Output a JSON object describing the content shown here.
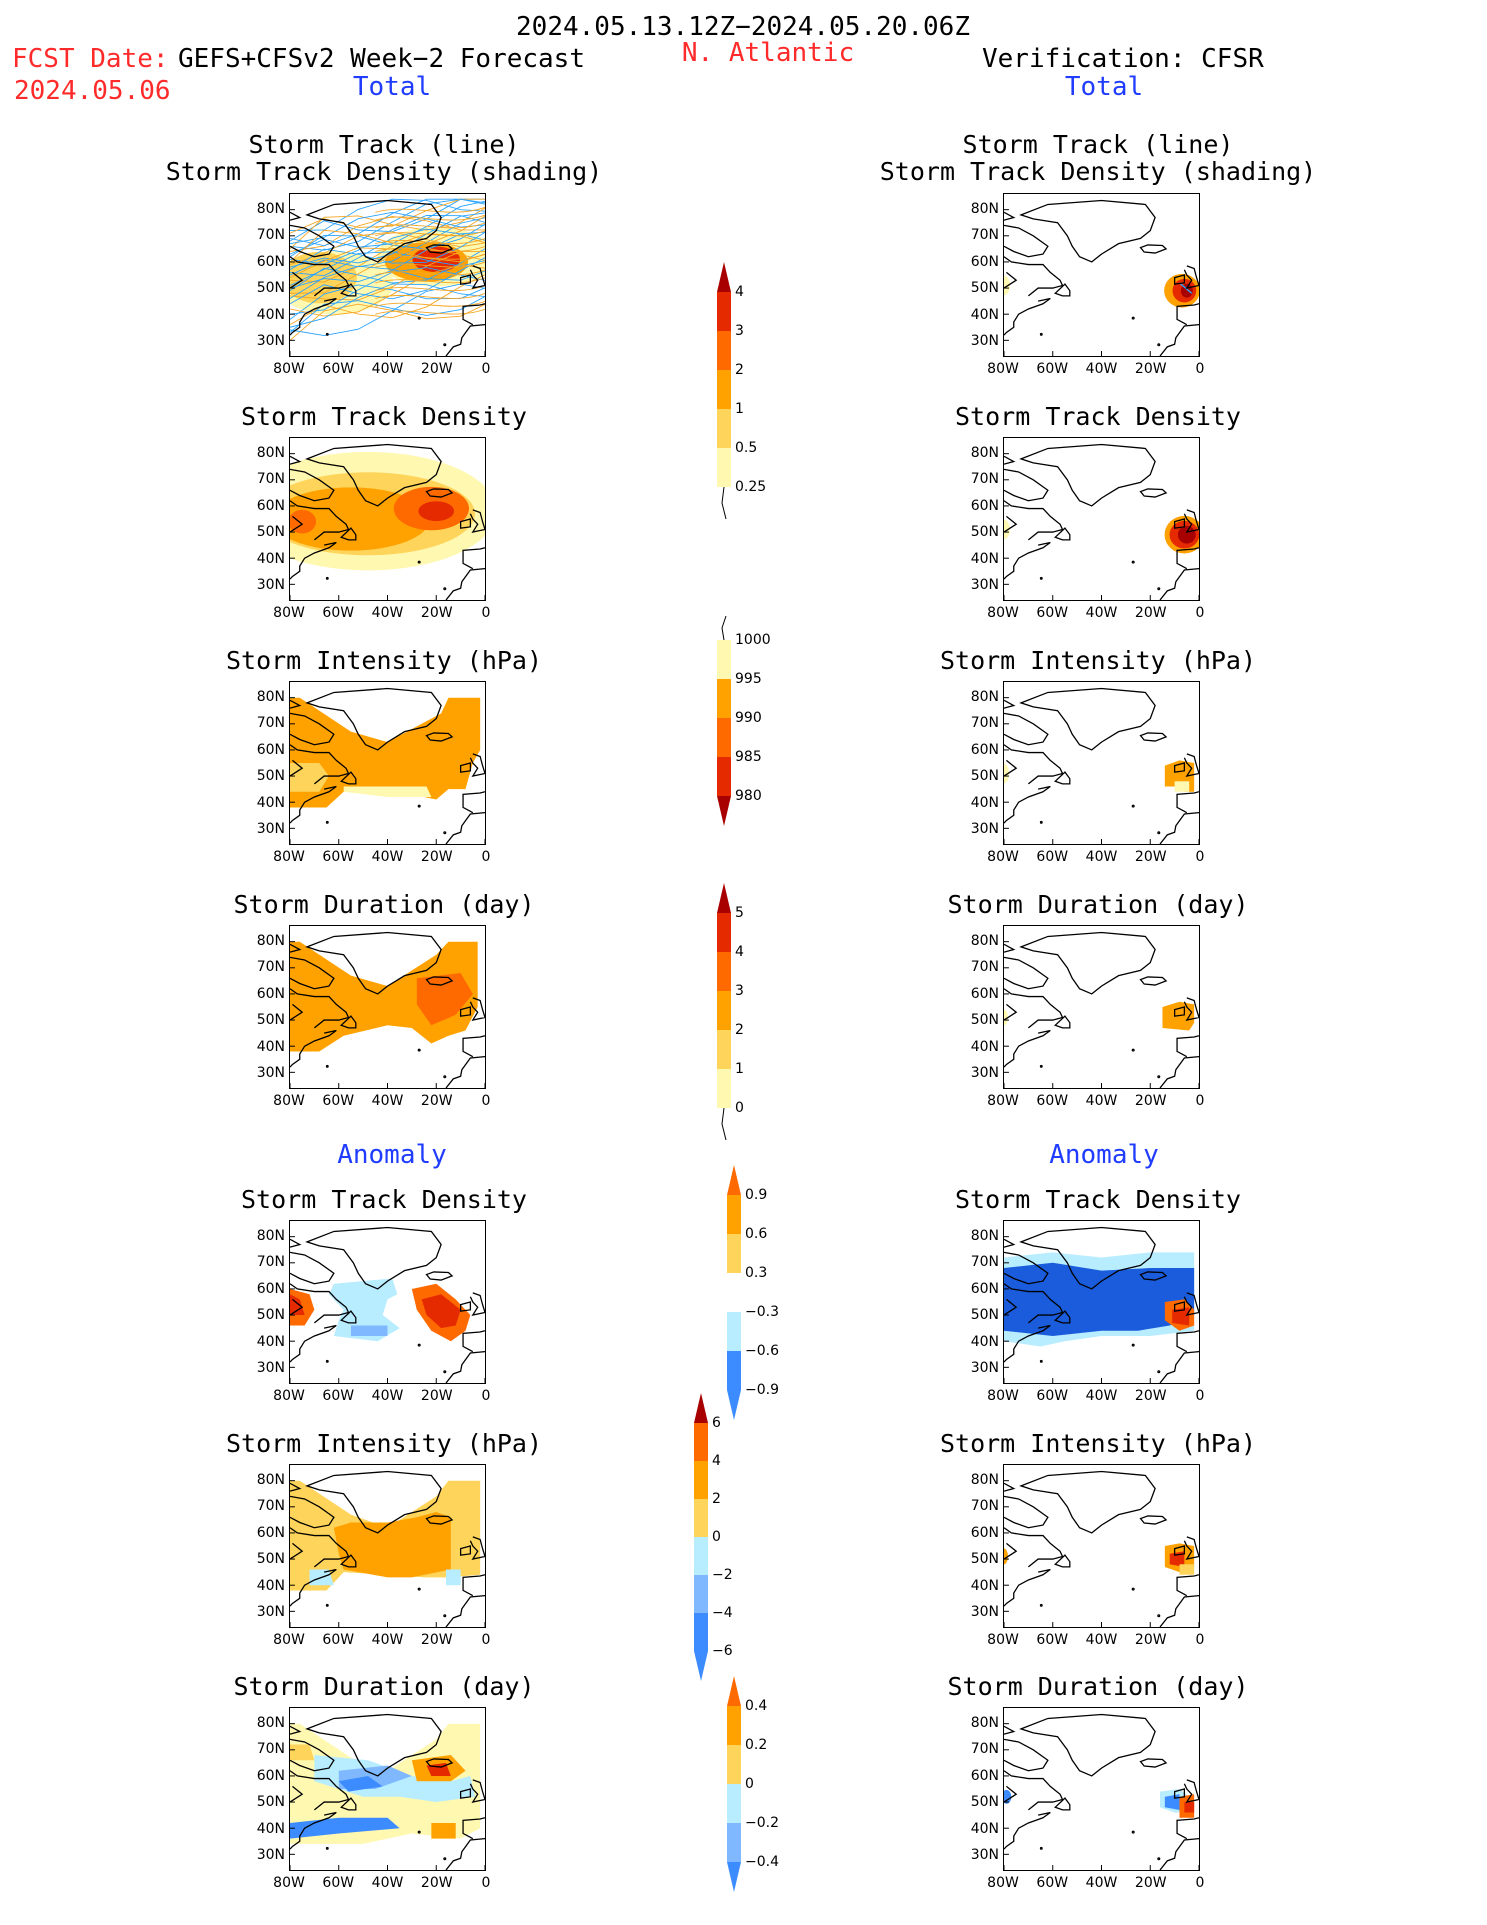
{
  "header": {
    "period": "2024.05.13.12Z−2024.05.20.06Z",
    "fcst_label": "FCST Date:",
    "fcst_model": "GEFS+CFSv2 Week−2 Forecast",
    "fcst_date": "2024.05.06",
    "region": "N. Atlantic",
    "verification": "Verification: CFSR",
    "total_left": "Total",
    "total_right": "Total",
    "anomaly_left": "Anomaly",
    "anomaly_right": "Anomaly"
  },
  "panel_titles": {
    "track_line": "Storm Track (line)",
    "track_density_shading": "Storm Track Density (shading)",
    "track_density": "Storm Track Density",
    "intensity": "Storm Intensity (hPa)",
    "duration": "Storm Duration (day)"
  },
  "axes": {
    "lat_ticks": [
      "80N",
      "70N",
      "60N",
      "50N",
      "40N",
      "30N"
    ],
    "lon_ticks": [
      "80W",
      "60W",
      "40W",
      "20W",
      "0"
    ]
  },
  "colors": {
    "yellow_light": "#fff8b0",
    "yellow": "#ffd45a",
    "orange": "#ffa200",
    "orange_dark": "#ff6a00",
    "red": "#e62a00",
    "dark_red": "#a80000",
    "cyan_light": "#b8ecff",
    "blue_light": "#7fb8ff",
    "blue": "#3c8cff",
    "blue_dark": "#1a5cdc",
    "track_blue": "#29a3ff",
    "track_orange": "#f5a623"
  },
  "chart_data": [
    {
      "type": "heatmap",
      "id": "fcst-track",
      "title": "Storm Track (line)",
      "subtitle": "Storm Track Density (shading)",
      "source": "GEFS+CFSv2"
    },
    {
      "type": "heatmap",
      "id": "obs-track",
      "title": "Storm Track (line)",
      "subtitle": "Storm Track Density (shading)",
      "source": "CFSR"
    },
    {
      "type": "heatmap",
      "id": "fcst-density",
      "title": "Storm Track Density",
      "levels": [
        0.25,
        0.5,
        1,
        2,
        3,
        4
      ]
    },
    {
      "type": "heatmap",
      "id": "obs-density",
      "title": "Storm Track Density",
      "levels": [
        0.25,
        0.5,
        1,
        2,
        3,
        4
      ]
    },
    {
      "type": "heatmap",
      "id": "fcst-intensity",
      "title": "Storm Intensity (hPa)",
      "levels": [
        1000,
        995,
        990,
        985,
        980
      ]
    },
    {
      "type": "heatmap",
      "id": "obs-intensity",
      "title": "Storm Intensity (hPa)",
      "levels": [
        1000,
        995,
        990,
        985,
        980
      ]
    },
    {
      "type": "heatmap",
      "id": "fcst-duration",
      "title": "Storm Duration (day)",
      "levels": [
        0,
        1,
        2,
        3,
        4,
        5
      ]
    },
    {
      "type": "heatmap",
      "id": "obs-duration",
      "title": "Storm Duration (day)",
      "levels": [
        0,
        1,
        2,
        3,
        4,
        5
      ]
    },
    {
      "type": "heatmap",
      "id": "fcst-anom-density",
      "title": "Storm Track Density",
      "levels": [
        0.9,
        0.6,
        0.3,
        -0.3,
        -0.6,
        -0.9
      ]
    },
    {
      "type": "heatmap",
      "id": "obs-anom-density",
      "title": "Storm Track Density",
      "levels": [
        0.9,
        0.6,
        0.3,
        -0.3,
        -0.6,
        -0.9
      ]
    },
    {
      "type": "heatmap",
      "id": "fcst-anom-intensity",
      "title": "Storm Intensity (hPa)",
      "levels": [
        6,
        4,
        2,
        0,
        -2,
        -4,
        -6
      ]
    },
    {
      "type": "heatmap",
      "id": "obs-anom-intensity",
      "title": "Storm Intensity (hPa)",
      "levels": [
        6,
        4,
        2,
        0,
        -2,
        -4,
        -6
      ]
    },
    {
      "type": "heatmap",
      "id": "fcst-anom-duration",
      "title": "Storm Duration (day)",
      "levels": [
        0.4,
        0.2,
        0,
        -0.2,
        -0.4
      ]
    },
    {
      "type": "heatmap",
      "id": "obs-anom-duration",
      "title": "Storm Duration (day)",
      "levels": [
        0.4,
        0.2,
        0,
        -0.2,
        -0.4
      ]
    }
  ],
  "colorbars": {
    "density": [
      "4",
      "3",
      "2",
      "1",
      "0.5",
      "0.25"
    ],
    "intensity": [
      "1000",
      "995",
      "990",
      "985",
      "980"
    ],
    "duration": [
      "5",
      "4",
      "3",
      "2",
      "1",
      "0"
    ],
    "anom_density": [
      "0.9",
      "0.6",
      "0.3",
      "−0.3",
      "−0.6",
      "−0.9"
    ],
    "anom_intensity": [
      "6",
      "4",
      "2",
      "0",
      "−2",
      "−4",
      "−6"
    ],
    "anom_duration": [
      "0.4",
      "0.2",
      "0",
      "−0.2",
      "−0.4"
    ]
  }
}
